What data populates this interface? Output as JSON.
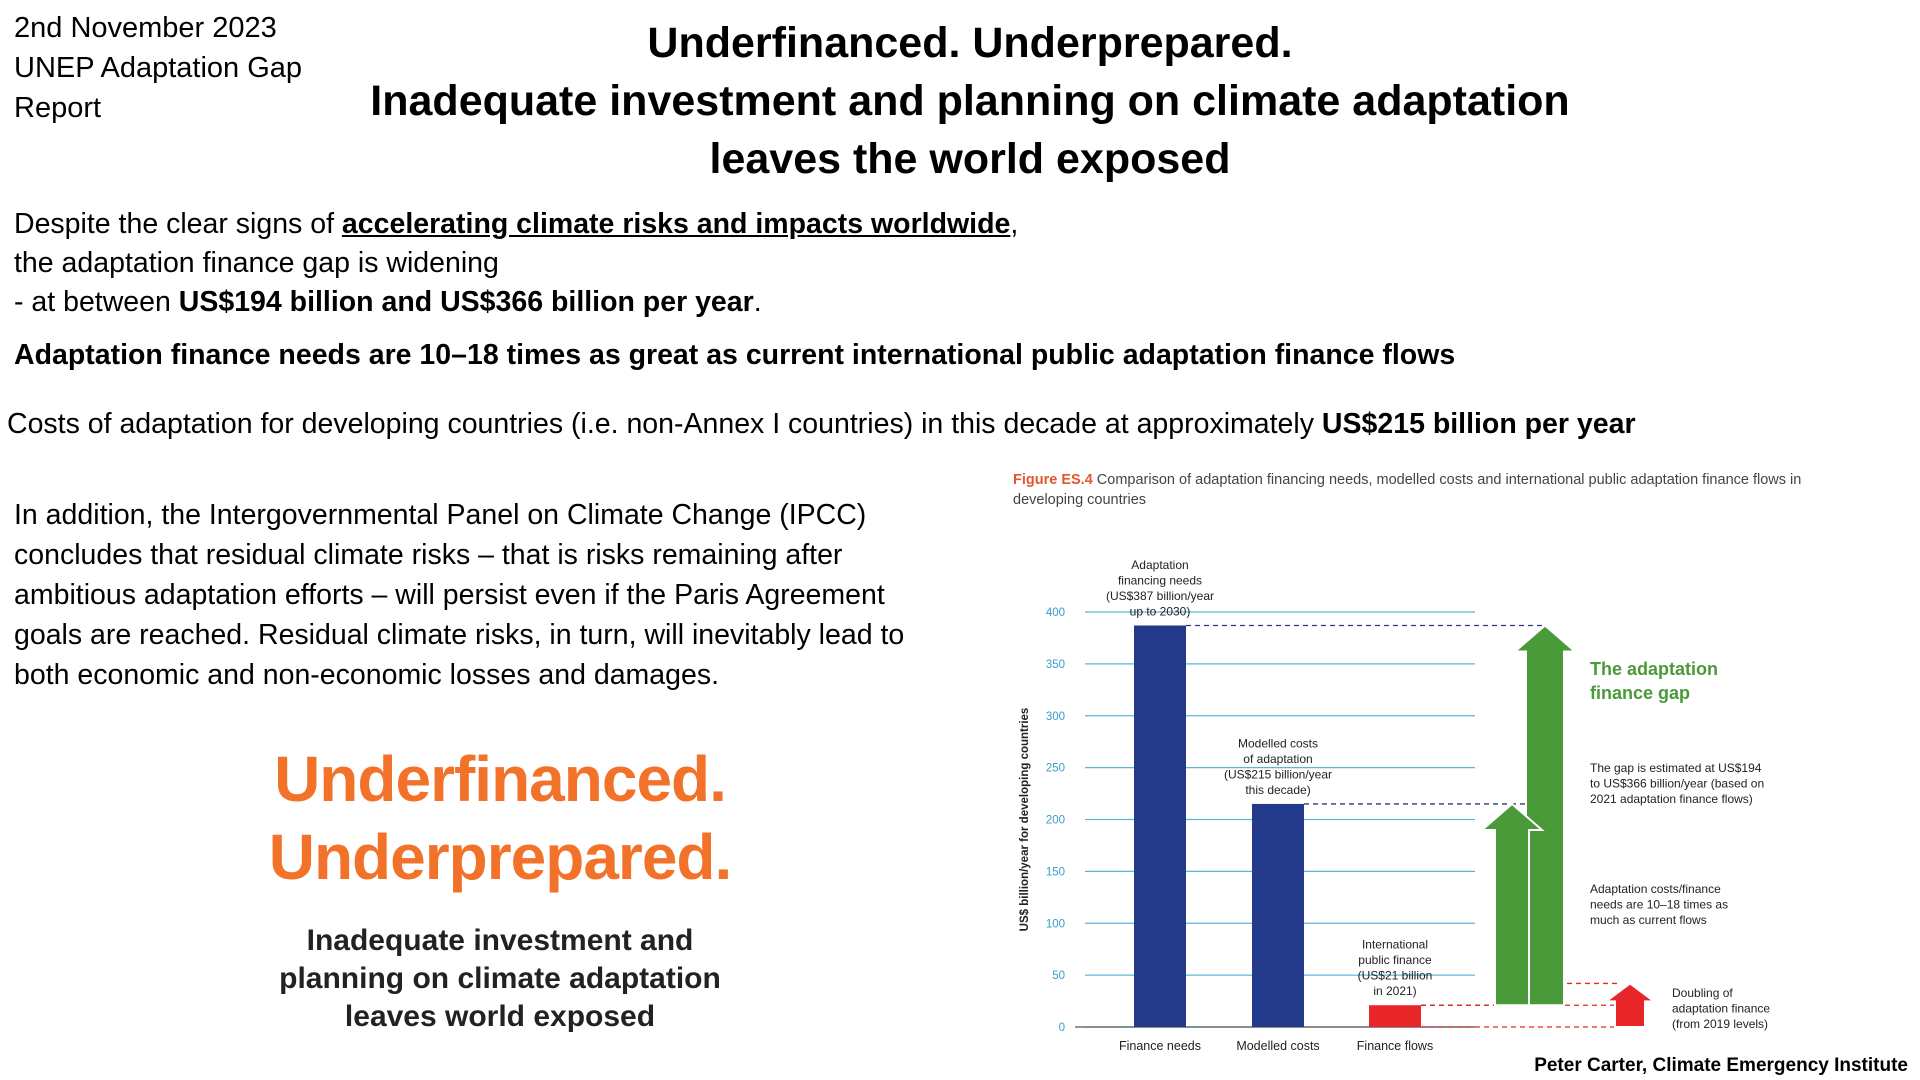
{
  "header": {
    "date_lines": [
      "2nd November 2023",
      "UNEP Adaptation Gap",
      "Report"
    ],
    "title_lines": [
      "Underfinanced. Underprepared.",
      "Inadequate investment and planning on climate adaptation",
      "leaves the world exposed"
    ]
  },
  "body": {
    "p1_a": "Despite the clear signs of ",
    "p1_link": "accelerating climate risks and impacts worldwide",
    "p1_b": ",",
    "p1_line2": "the adaptation finance gap is widening",
    "p1_line3_a": "- at between ",
    "p1_line3_b": "US$194 billion and US$366 billion per year",
    "p1_line3_c": ".",
    "p2": "Adaptation finance needs are 10–18 times as great as current international public adaptation finance flows",
    "p3_a": "Costs of adaptation for developing countries (i.e. non-Annex I countries) in this decade at approximately ",
    "p3_b": "US$215 billion per year",
    "p4": "In addition, the Intergovernmental Panel on Climate Change (IPCC) concludes that residual climate risks – that is risks remaining after ambitious adaptation efforts – will persist even if the Paris Agreement goals are reached. Residual climate risks, in turn, will inevitably lead to both economic and non-economic losses and damages."
  },
  "cover": {
    "title_lines": [
      "Underfinanced.",
      "Underprepared."
    ],
    "subtitle_lines": [
      "Inadequate investment and",
      "planning on climate adaptation",
      "leaves world exposed"
    ],
    "title_color": "#f2722a"
  },
  "figure": {
    "number": "Figure ES.4",
    "caption": " Comparison of adaptation financing needs, modelled costs and international public adaptation finance flows in developing countries"
  },
  "chart_data": {
    "type": "bar",
    "categories": [
      "Finance needs",
      "Modelled costs",
      "Finance flows"
    ],
    "values": [
      387,
      215,
      21
    ],
    "bar_colors": [
      "#233a8a",
      "#233a8a",
      "#e8262a"
    ],
    "ylabel": "US$ billion/year for developing countries",
    "ylim": [
      0,
      400
    ],
    "yticks": [
      0,
      50,
      100,
      150,
      200,
      250,
      300,
      350,
      400
    ],
    "grid": true,
    "bar_labels": [
      [
        "Adaptation",
        "financing needs",
        "(US$387 billion/year",
        "up to 2030)"
      ],
      [
        "Modelled costs",
        "of adaptation",
        "(US$215 billion/year",
        "this decade)"
      ],
      [
        "International",
        "public finance",
        "(US$21 billion",
        "in 2021)"
      ]
    ],
    "gap_title_lines": [
      "The adaptation",
      "finance gap"
    ],
    "gap_color": "#4a9a3a",
    "annotations": [
      [
        "The gap is estimated at US$194",
        "to US$366 billion/year (based on",
        "2021 adaptation finance flows)"
      ],
      [
        "Adaptation costs/finance",
        "needs are 10–18 times as",
        "much as current flows"
      ],
      [
        "Doubling of",
        "adaptation finance",
        "(from 2019 levels)"
      ]
    ],
    "gap_arrows": [
      {
        "from": 21,
        "to": 387,
        "color": "#4a9a3a"
      },
      {
        "from": 21,
        "to": 215,
        "color": "#4a9a3a"
      },
      {
        "from": 0,
        "to": 42,
        "color": "#e8262a"
      }
    ]
  },
  "credit": "Peter Carter, Climate Emergency Institute"
}
